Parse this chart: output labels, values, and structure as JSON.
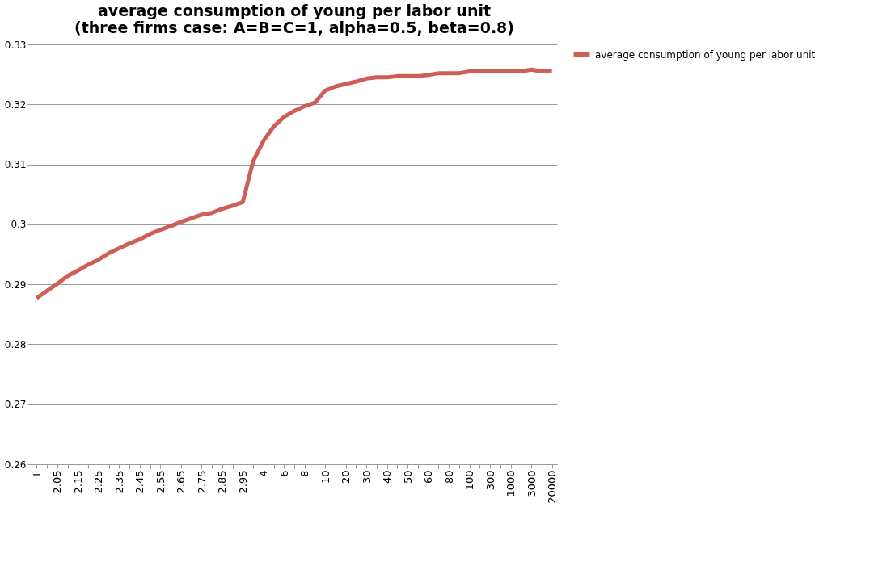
{
  "chart_data": {
    "type": "line",
    "title": [
      "average consumption of young per labor unit",
      "(three firms case: A=B=C=1, alpha=0.5, beta=0.8)"
    ],
    "categories": [
      "L",
      null,
      "2.05",
      null,
      "2.15",
      null,
      "2.25",
      null,
      "2.35",
      null,
      "2.45",
      null,
      "2.55",
      null,
      "2.65",
      null,
      "2.75",
      null,
      "2.85",
      null,
      "2.95",
      null,
      "4",
      null,
      "6",
      null,
      "8",
      null,
      "10",
      null,
      "20",
      null,
      "30",
      null,
      "40",
      null,
      "50",
      null,
      "60",
      null,
      "80",
      null,
      "100",
      null,
      "300",
      null,
      "1000",
      null,
      "3000",
      null,
      "20000"
    ],
    "series": [
      {
        "name": "average consumption of young per labor unit",
        "color": "#cd5f57",
        "values": [
          0.2877,
          0.2889,
          0.2901,
          0.2914,
          0.2923,
          0.2933,
          0.2941,
          0.2952,
          0.296,
          0.2968,
          0.2975,
          0.2984,
          0.2991,
          0.2997,
          0.3004,
          0.301,
          0.3016,
          0.3019,
          0.3026,
          0.3031,
          0.3037,
          0.3105,
          0.3139,
          0.3163,
          0.3179,
          0.3189,
          0.3197,
          0.3203,
          0.3223,
          0.323,
          0.3234,
          0.3238,
          0.3243,
          0.3245,
          0.3245,
          0.3247,
          0.3247,
          0.3247,
          0.3249,
          0.3252,
          0.3252,
          0.3252,
          0.3255,
          0.3255,
          0.3255,
          0.3255,
          0.3255,
          0.3255,
          0.3258,
          0.3255,
          0.3255
        ]
      }
    ],
    "ylim": [
      0.26,
      0.33
    ],
    "yticks": [
      0.26,
      0.27,
      0.28,
      0.29,
      0.3,
      0.31,
      0.32,
      0.33
    ],
    "grid": "y",
    "legend": "right",
    "marker": "none",
    "line_style": "solid"
  }
}
